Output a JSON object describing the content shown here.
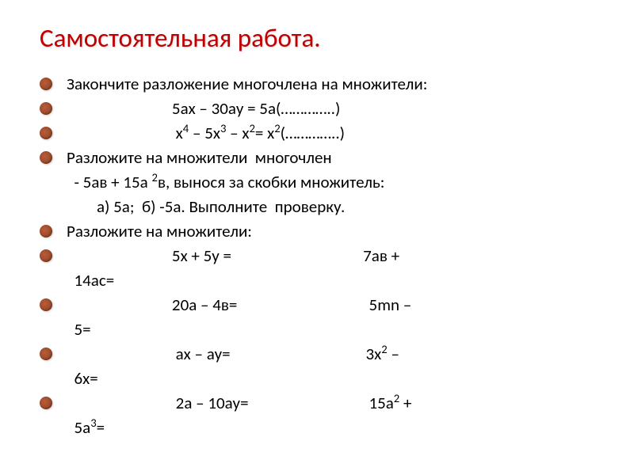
{
  "title": "Самостоятельная работа.",
  "bullet_color_gradient": [
    "#b85c3a",
    "#8a3e1e"
  ],
  "title_color": "#c00000",
  "text_color": "#000000",
  "background_color": "#ffffff",
  "title_fontsize": 33,
  "text_fontsize": 21,
  "lines": [
    {
      "bullet": true,
      "html": "Закончите разложение многочлена на множители:"
    },
    {
      "bullet": true,
      "html": "                            5ах – 30ау = 5а(…………..)"
    },
    {
      "bullet": true,
      "html": "                             х<sup>4</sup> – 5х<sup>3</sup> – х<sup>2</sup>= х<sup>2</sup>(…………..)"
    },
    {
      "bullet": true,
      "html": "Разложите на множители  многочлен"
    },
    {
      "bullet": false,
      "html": "  - 5ав + 15а <sup>2</sup>в, вынося за скобки множитель:"
    },
    {
      "bullet": false,
      "html": "        а) 5а;  б) -5а. Выполните  проверку."
    },
    {
      "bullet": true,
      "html": "Разложите на множители:"
    },
    {
      "bullet": true,
      "html": "                            5х + 5у =                                   7ав + "
    },
    {
      "bullet": false,
      "html": "  14ас="
    },
    {
      "bullet": true,
      "html": "                            20а – 4в=                                   5mn –"
    },
    {
      "bullet": false,
      "html": "  5="
    },
    {
      "bullet": true,
      "html": "                             ах – ау=                                    3х<sup>2</sup> –"
    },
    {
      "bullet": false,
      "html": "  6х="
    },
    {
      "bullet": true,
      "html": "                             2а – 10ау=                                15а<sup>2</sup> +"
    },
    {
      "bullet": false,
      "html": "  5а<sup>3</sup>="
    }
  ]
}
